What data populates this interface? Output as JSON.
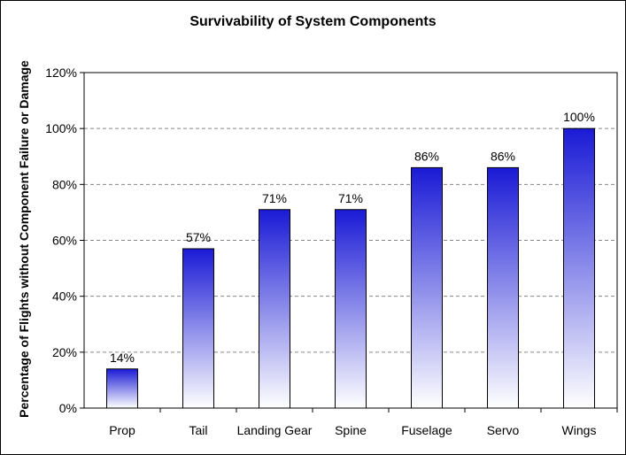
{
  "chart_data": {
    "type": "bar",
    "title": "Survivability of System Components",
    "ylabel": "Percentage of Flights without Component Failure or Damage",
    "xlabel": "",
    "categories": [
      "Prop",
      "Tail",
      "Landing Gear",
      "Spine",
      "Fuselage",
      "Servo",
      "Wings"
    ],
    "values": [
      14,
      57,
      71,
      71,
      86,
      86,
      100
    ],
    "data_labels": [
      "14%",
      "57%",
      "71%",
      "71%",
      "86%",
      "86%",
      "100%"
    ],
    "yticks": [
      "0%",
      "20%",
      "40%",
      "60%",
      "80%",
      "100%",
      "120%"
    ],
    "ylim": [
      0,
      120
    ],
    "grid": "horizontal dashed",
    "colors": {
      "bar_top": "#1a1ad6",
      "bar_bottom": "#ffffff",
      "bar_stroke": "#000000",
      "grid": "#888888"
    }
  }
}
